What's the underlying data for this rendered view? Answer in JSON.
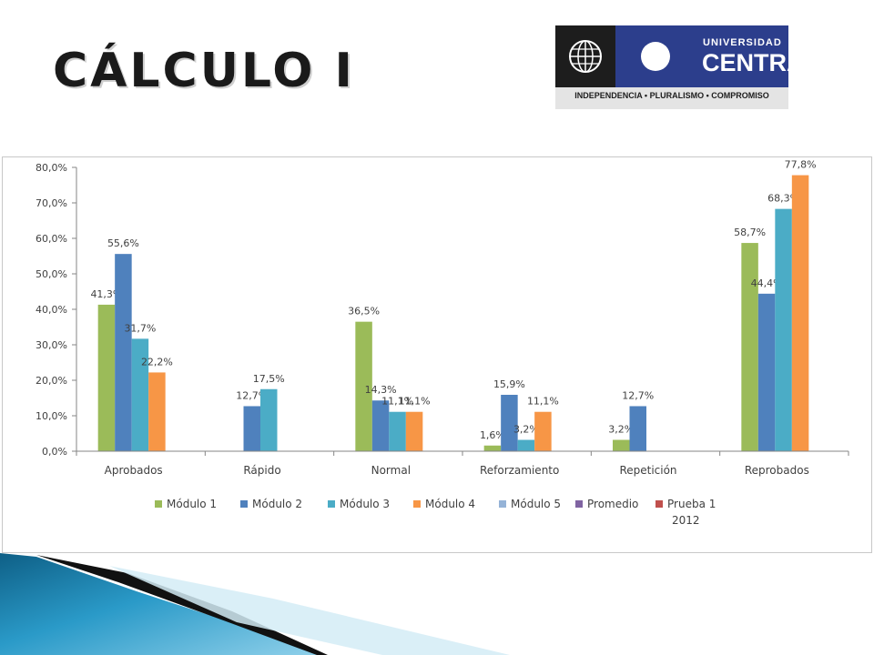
{
  "slide": {
    "title": "CÁLCULO I"
  },
  "logo": {
    "line1": "UNIVERSIDAD",
    "line2": "CENTRAL",
    "motto": "INDEPENDENCIA • PLURALISMO • COMPROMISO",
    "colors": {
      "dark": "#1d1d1d",
      "blue": "#2c3e8c",
      "band": "#e4e4e4"
    }
  },
  "chart_data": {
    "type": "bar",
    "title": "",
    "xlabel": "",
    "ylabel": "",
    "ylim": [
      0,
      80
    ],
    "y_ticks": [
      "0,0%",
      "10,0%",
      "20,0%",
      "30,0%",
      "40,0%",
      "50,0%",
      "60,0%",
      "70,0%",
      "80,0%"
    ],
    "grid": false,
    "legend_position": "bottom",
    "categories": [
      "Aprobados",
      "Rápido",
      "Normal",
      "Reforzamiento",
      "Repetición",
      "Reprobados"
    ],
    "series": [
      {
        "name": "Módulo 1",
        "color": "#9bbb59",
        "values": [
          41.3,
          null,
          36.5,
          1.6,
          3.2,
          58.7
        ],
        "labels": [
          "41,3%",
          "",
          "36,5%",
          "1,6%",
          "3,2%",
          "58,7%"
        ]
      },
      {
        "name": "Módulo 2",
        "color": "#4f81bd",
        "values": [
          55.6,
          12.7,
          14.3,
          15.9,
          12.7,
          44.4
        ],
        "labels": [
          "55,6%",
          "12,7%",
          "14,3%",
          "15,9%",
          "12,7%",
          "44,4%"
        ]
      },
      {
        "name": "Módulo 3",
        "color": "#4bacc6",
        "values": [
          31.7,
          17.5,
          11.1,
          3.2,
          null,
          68.3
        ],
        "labels": [
          "31,7%",
          "17,5%",
          "11,1%",
          "3,2%",
          "",
          "68,3%"
        ]
      },
      {
        "name": "Módulo 4",
        "color": "#f79646",
        "values": [
          22.2,
          null,
          11.1,
          11.1,
          null,
          77.8
        ],
        "labels": [
          "22,2%",
          "",
          "11,1%",
          "11,1%",
          "",
          "77,8%"
        ]
      },
      {
        "name": "Módulo 5",
        "color": "#95b3d7",
        "values": [
          null,
          null,
          null,
          null,
          null,
          null
        ],
        "labels": [
          "",
          "",
          "",
          "",
          "",
          ""
        ]
      },
      {
        "name": "Promedio",
        "color": "#8064a2",
        "values": [
          null,
          null,
          null,
          null,
          null,
          null
        ],
        "labels": [
          "",
          "",
          "",
          "",
          "",
          ""
        ]
      },
      {
        "name": "Prueba 1 2012",
        "color": "#c0504d",
        "values": [
          null,
          null,
          null,
          null,
          null,
          null
        ],
        "labels": [
          "",
          "",
          "",
          "",
          "",
          ""
        ]
      }
    ]
  }
}
